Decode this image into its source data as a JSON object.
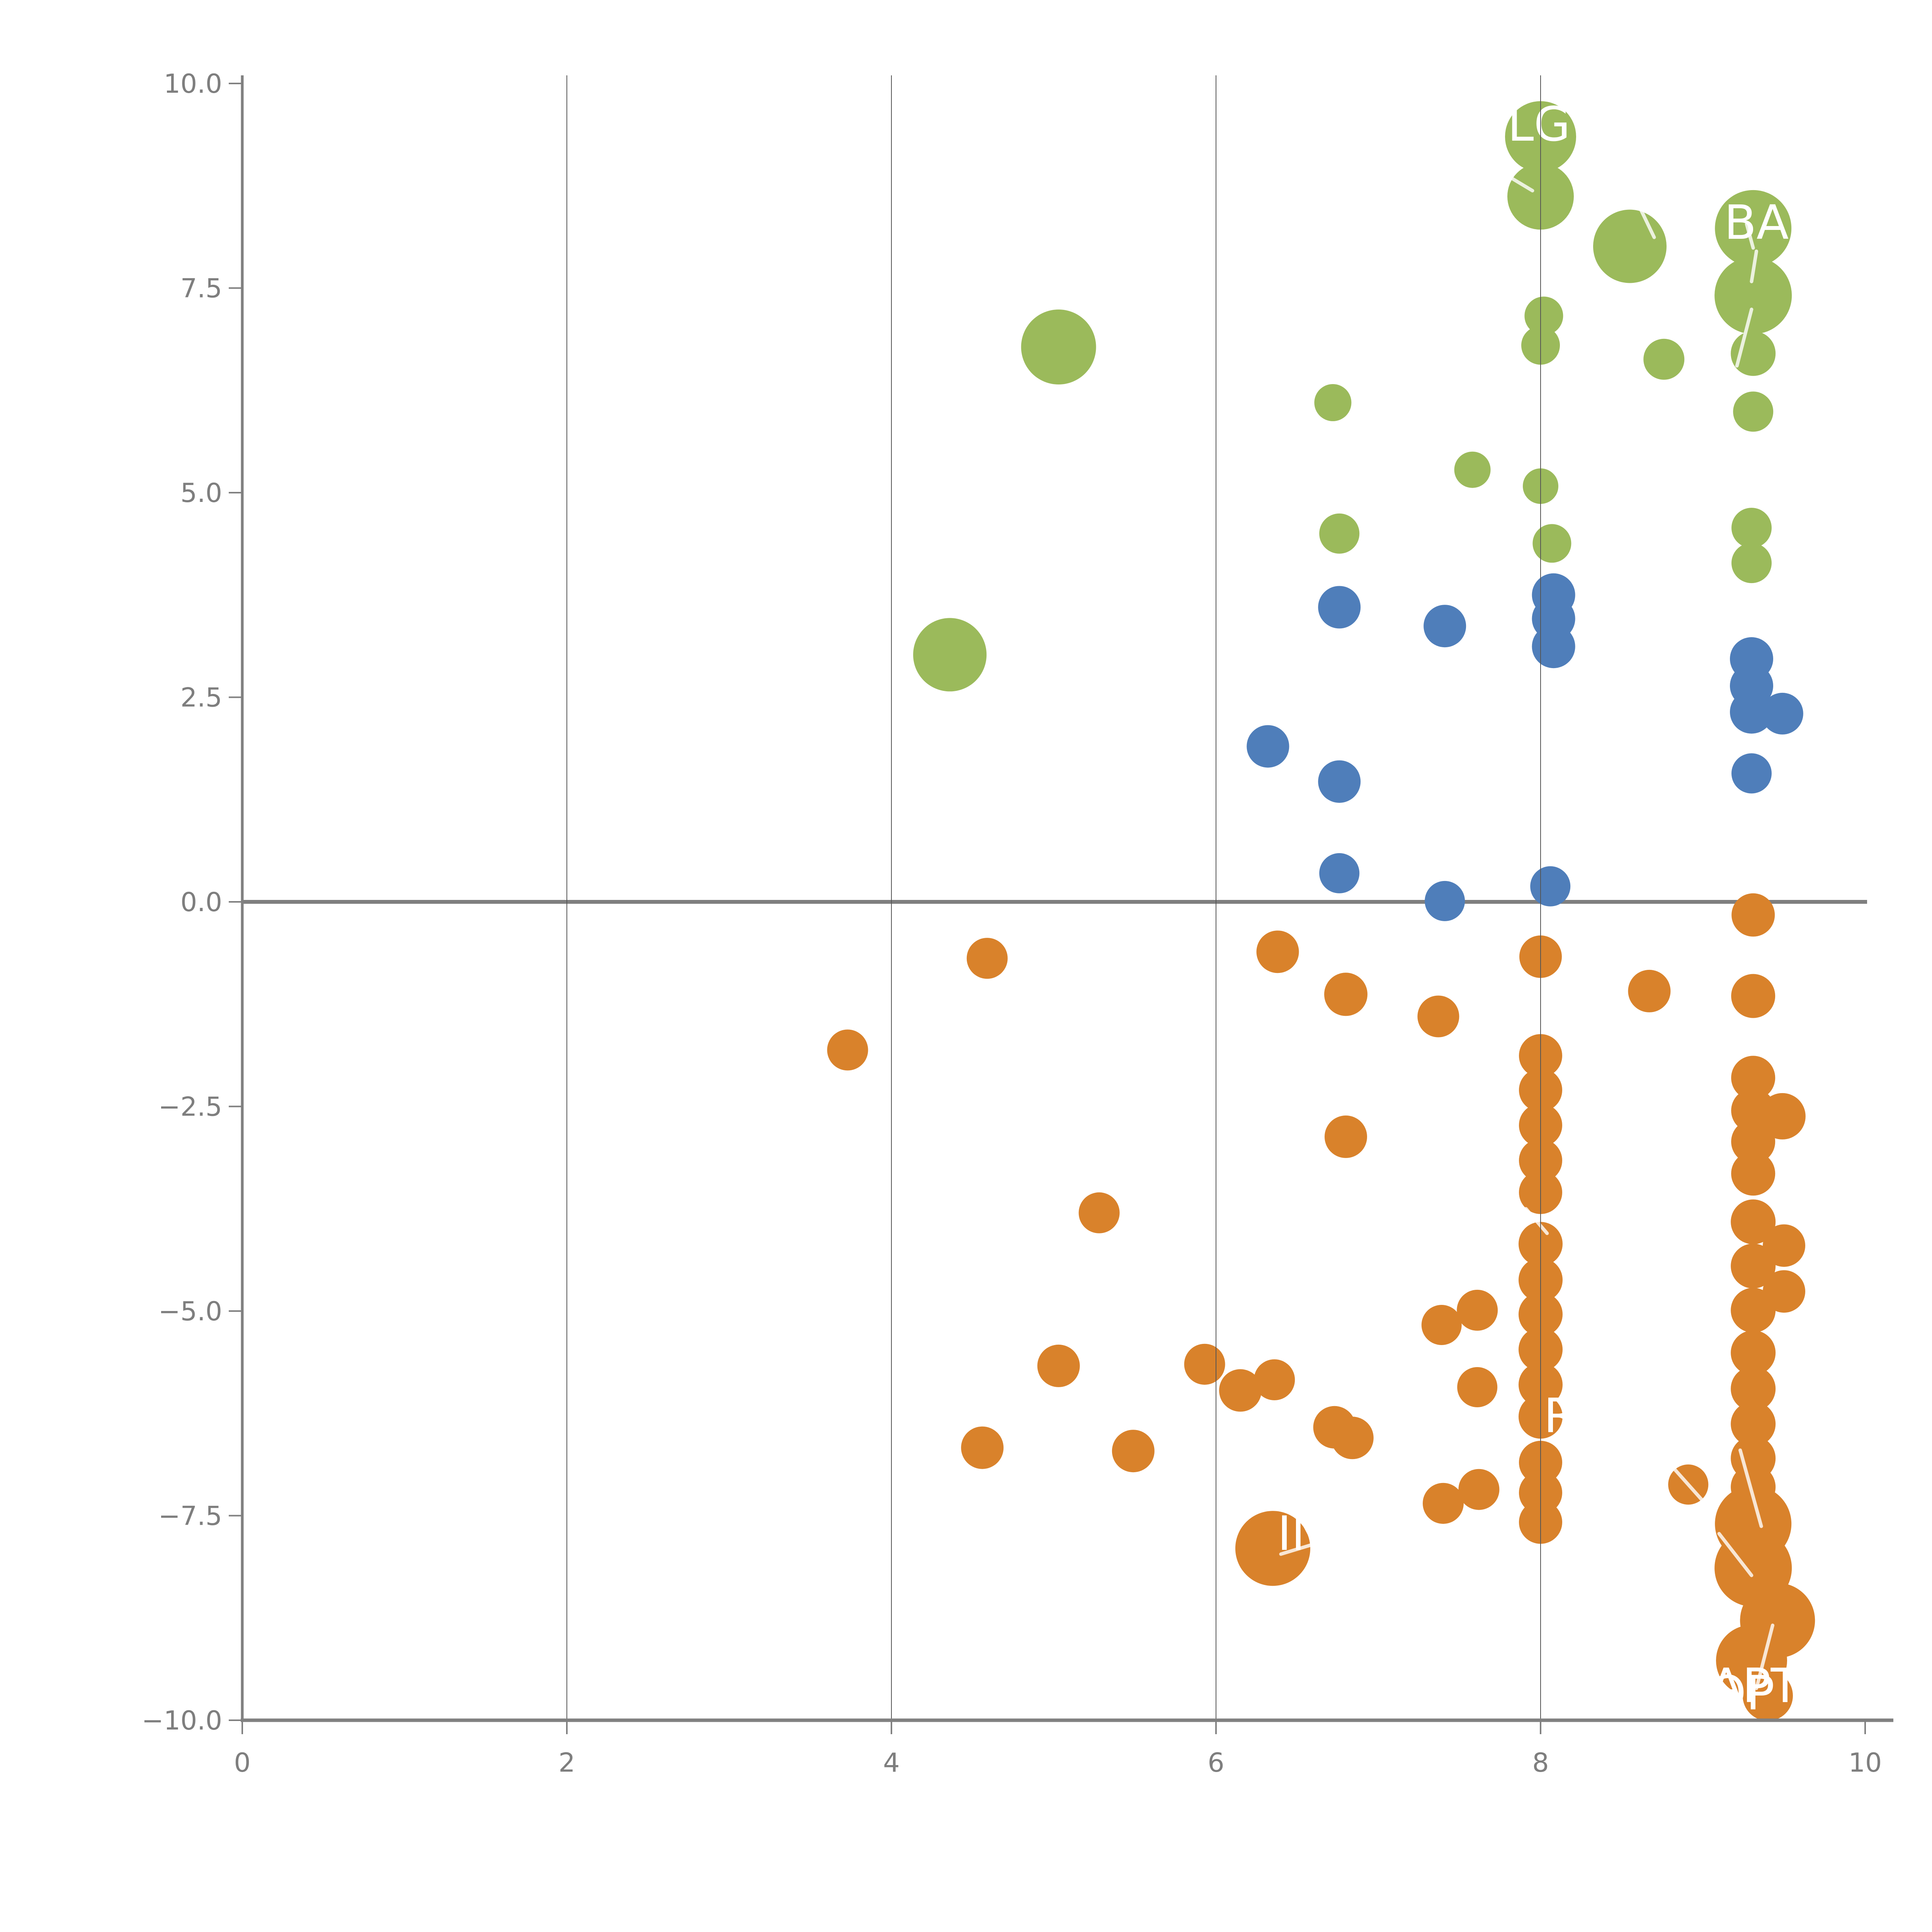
{
  "page": {
    "background": "#ffffff",
    "title": ""
  },
  "style_colors": {
    "series_green": "#9BBA5B",
    "series_blue": "#4F7EBA",
    "series_orange": "#D9822B",
    "axis_spine": "#808080",
    "zero_line": "#7F7F7F",
    "gridline": "#555555",
    "tick_label": "#7E7E7E",
    "point_label_text": "#FFFFFF",
    "leader_line": "rgba(255,255,255,0.8)"
  },
  "chart_data": {
    "type": "scatter",
    "title": "",
    "subtitle": "",
    "xlabel": "",
    "ylabel": "",
    "xlim": [
      0,
      10
    ],
    "ylim": [
      -10,
      10
    ],
    "grid_on": true,
    "legend_position": "none",
    "x_tick_values": [
      0,
      2,
      4,
      6,
      8,
      10
    ],
    "x_tick_labels": [
      "0",
      "2",
      "4",
      "6",
      "8",
      "10"
    ],
    "y_tick_values": [
      10,
      7.5,
      5,
      2.5,
      0,
      -2.5,
      -5,
      -7.5,
      -10
    ],
    "y_tick_labels": [
      "10.0",
      "7.5",
      "5.0",
      "2.5",
      "0.0",
      "−2.5",
      "−5.0",
      "−7.5",
      "−10.0"
    ],
    "grid_x_values": [
      2,
      4,
      6,
      8
    ],
    "zero_line_y": 0,
    "series": [
      {
        "name": "green",
        "color": "#9BBA5B",
        "points": [
          {
            "x": 4.36,
            "y": 3.02,
            "r": 95
          },
          {
            "x": 5.03,
            "y": 6.78,
            "r": 97
          },
          {
            "x": 6.72,
            "y": 6.1,
            "r": 48
          },
          {
            "x": 6.76,
            "y": 4.5,
            "r": 52
          },
          {
            "x": 7.58,
            "y": 5.28,
            "r": 47
          },
          {
            "x": 8.0,
            "y": 9.35,
            "r": 92
          },
          {
            "x": 8.0,
            "y": 8.62,
            "r": 86
          },
          {
            "x": 8.02,
            "y": 7.16,
            "r": 50
          },
          {
            "x": 8.0,
            "y": 6.8,
            "r": 50
          },
          {
            "x": 8.0,
            "y": 5.08,
            "r": 46
          },
          {
            "x": 8.07,
            "y": 4.38,
            "r": 50
          },
          {
            "x": 8.55,
            "y": 8.01,
            "r": 95
          },
          {
            "x": 8.76,
            "y": 6.63,
            "r": 53
          },
          {
            "x": 9.31,
            "y": 8.23,
            "r": 99
          },
          {
            "x": 9.31,
            "y": 7.41,
            "r": 100
          },
          {
            "x": 9.31,
            "y": 6.7,
            "r": 58
          },
          {
            "x": 9.31,
            "y": 5.99,
            "r": 52
          },
          {
            "x": 9.3,
            "y": 4.57,
            "r": 52
          },
          {
            "x": 9.3,
            "y": 4.14,
            "r": 52
          }
        ]
      },
      {
        "name": "blue",
        "color": "#4F7EBA",
        "points": [
          {
            "x": 6.32,
            "y": 1.9,
            "r": 55
          },
          {
            "x": 6.76,
            "y": 3.6,
            "r": 55
          },
          {
            "x": 6.76,
            "y": 1.47,
            "r": 55
          },
          {
            "x": 6.76,
            "y": 0.35,
            "r": 52
          },
          {
            "x": 7.41,
            "y": 3.37,
            "r": 55
          },
          {
            "x": 7.41,
            "y": 0.01,
            "r": 52
          },
          {
            "x": 8.08,
            "y": 3.75,
            "r": 56
          },
          {
            "x": 8.08,
            "y": 3.46,
            "r": 56
          },
          {
            "x": 8.08,
            "y": 3.12,
            "r": 56
          },
          {
            "x": 8.06,
            "y": 0.19,
            "r": 52
          },
          {
            "x": 9.3,
            "y": 2.97,
            "r": 56
          },
          {
            "x": 9.3,
            "y": 2.64,
            "r": 56
          },
          {
            "x": 9.3,
            "y": 2.32,
            "r": 56
          },
          {
            "x": 9.49,
            "y": 2.3,
            "r": 54
          },
          {
            "x": 9.3,
            "y": 1.57,
            "r": 52
          }
        ]
      },
      {
        "name": "orange",
        "color": "#D9822B",
        "points": [
          {
            "x": 3.73,
            "y": -1.81,
            "r": 53
          },
          {
            "x": 4.59,
            "y": -0.69,
            "r": 53
          },
          {
            "x": 4.56,
            "y": -6.67,
            "r": 55
          },
          {
            "x": 5.03,
            "y": -5.67,
            "r": 55
          },
          {
            "x": 5.28,
            "y": -3.8,
            "r": 53
          },
          {
            "x": 5.49,
            "y": -6.71,
            "r": 55
          },
          {
            "x": 5.93,
            "y": -5.65,
            "r": 53
          },
          {
            "x": 6.15,
            "y": -5.97,
            "r": 55
          },
          {
            "x": 6.36,
            "y": -5.84,
            "r": 53
          },
          {
            "x": 6.38,
            "y": -0.61,
            "r": 55
          },
          {
            "x": 6.73,
            "y": -6.42,
            "r": 55
          },
          {
            "x": 6.84,
            "y": -6.55,
            "r": 55
          },
          {
            "x": 6.8,
            "y": -1.13,
            "r": 56
          },
          {
            "x": 6.8,
            "y": -2.87,
            "r": 55
          },
          {
            "x": 7.37,
            "y": -1.4,
            "r": 54
          },
          {
            "x": 7.39,
            "y": -5.17,
            "r": 52
          },
          {
            "x": 7.61,
            "y": -4.99,
            "r": 53
          },
          {
            "x": 7.61,
            "y": -5.93,
            "r": 52
          },
          {
            "x": 7.4,
            "y": -7.35,
            "r": 53
          },
          {
            "x": 7.62,
            "y": -7.18,
            "r": 53
          },
          {
            "x": 8.67,
            "y": -1.09,
            "r": 55
          },
          {
            "x": 8.91,
            "y": -7.12,
            "r": 52
          },
          {
            "x": 6.35,
            "y": -7.9,
            "r": 97
          },
          {
            "x": 8.0,
            "y": -0.67,
            "r": 55
          },
          {
            "x": 8.0,
            "y": -1.88,
            "r": 56
          },
          {
            "x": 8.0,
            "y": -2.3,
            "r": 56
          },
          {
            "x": 8.0,
            "y": -2.73,
            "r": 56
          },
          {
            "x": 8.0,
            "y": -3.16,
            "r": 56
          },
          {
            "x": 8.0,
            "y": -3.55,
            "r": 56
          },
          {
            "x": 8.0,
            "y": -4.18,
            "r": 57
          },
          {
            "x": 8.0,
            "y": -4.62,
            "r": 57
          },
          {
            "x": 8.0,
            "y": -5.04,
            "r": 57
          },
          {
            "x": 8.0,
            "y": -5.47,
            "r": 57
          },
          {
            "x": 8.0,
            "y": -5.9,
            "r": 57
          },
          {
            "x": 8.0,
            "y": -6.29,
            "r": 57
          },
          {
            "x": 8.0,
            "y": -6.85,
            "r": 56
          },
          {
            "x": 8.0,
            "y": -7.22,
            "r": 56
          },
          {
            "x": 8.0,
            "y": -7.58,
            "r": 56
          },
          {
            "x": 9.31,
            "y": -0.16,
            "r": 56
          },
          {
            "x": 9.31,
            "y": -1.15,
            "r": 57
          },
          {
            "x": 9.31,
            "y": -2.15,
            "r": 57
          },
          {
            "x": 9.31,
            "y": -2.55,
            "r": 57
          },
          {
            "x": 9.49,
            "y": -2.62,
            "r": 60
          },
          {
            "x": 9.31,
            "y": -2.93,
            "r": 57
          },
          {
            "x": 9.31,
            "y": -3.32,
            "r": 57
          },
          {
            "x": 9.31,
            "y": -3.91,
            "r": 58
          },
          {
            "x": 9.5,
            "y": -4.2,
            "r": 55
          },
          {
            "x": 9.31,
            "y": -4.45,
            "r": 58
          },
          {
            "x": 9.5,
            "y": -4.76,
            "r": 55
          },
          {
            "x": 9.31,
            "y": -4.99,
            "r": 58
          },
          {
            "x": 9.31,
            "y": -5.51,
            "r": 58
          },
          {
            "x": 9.31,
            "y": -5.95,
            "r": 58
          },
          {
            "x": 9.31,
            "y": -6.38,
            "r": 58
          },
          {
            "x": 9.31,
            "y": -6.8,
            "r": 58
          },
          {
            "x": 9.31,
            "y": -7.15,
            "r": 58
          },
          {
            "x": 9.31,
            "y": -7.6,
            "r": 99
          },
          {
            "x": 9.31,
            "y": -8.14,
            "r": 100
          },
          {
            "x": 9.46,
            "y": -8.78,
            "r": 97
          },
          {
            "x": 9.3,
            "y": -9.27,
            "r": 92
          },
          {
            "x": 9.4,
            "y": -9.7,
            "r": 65
          }
        ]
      }
    ],
    "point_labels": [
      {
        "text": "LG",
        "x": 7.99,
        "y": 9.5
      },
      {
        "text": "BA",
        "x": 9.33,
        "y": 8.3
      },
      {
        "text": "R",
        "x": 8.12,
        "y": -6.28
      },
      {
        "text": "IN",
        "x": 6.53,
        "y": -7.72
      },
      {
        "text": "APT",
        "x": 9.32,
        "y": -9.58
      },
      {
        "text": "QP",
        "x": 9.24,
        "y": -9.67
      }
    ],
    "leader_lines": [
      {
        "x1": 7.79,
        "y1": 8.88,
        "x2": 7.95,
        "y2": 8.69
      },
      {
        "x1": 8.62,
        "y1": 8.45,
        "x2": 8.7,
        "y2": 8.12
      },
      {
        "x1": 9.27,
        "y1": 8.28,
        "x2": 9.31,
        "y2": 7.99
      },
      {
        "x1": 9.33,
        "y1": 7.95,
        "x2": 9.3,
        "y2": 7.58
      },
      {
        "x1": 9.3,
        "y1": 7.24,
        "x2": 9.21,
        "y2": 6.55
      },
      {
        "x1": 7.91,
        "y1": -3.75,
        "x2": 8.04,
        "y2": -4.05
      },
      {
        "x1": 6.4,
        "y1": -7.97,
        "x2": 6.6,
        "y2": -7.85
      },
      {
        "x1": 8.82,
        "y1": -6.92,
        "x2": 9.0,
        "y2": -7.32
      },
      {
        "x1": 9.23,
        "y1": -6.7,
        "x2": 9.36,
        "y2": -7.63
      },
      {
        "x1": 9.1,
        "y1": -7.72,
        "x2": 9.3,
        "y2": -8.23
      },
      {
        "x1": 9.43,
        "y1": -8.84,
        "x2": 9.33,
        "y2": -9.61
      }
    ]
  }
}
